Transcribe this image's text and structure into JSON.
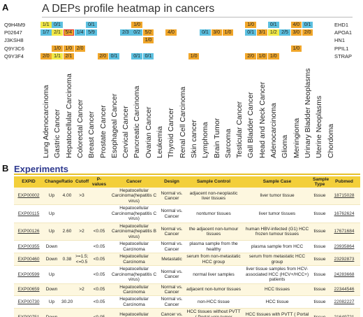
{
  "panel_a": "A",
  "panel_b": "B",
  "heatmap": {
    "title": "A DEPs profile heatmap in cancers",
    "columns": [
      "Lung Adenocarcinoma",
      "Gastric Cancer",
      "Hepatocellular Carcinoma",
      "Colorectal Cancer",
      "Breast Cancer",
      "Prostate Cancer",
      "Esophageal Cancer",
      "Cervical Cancer",
      "Pancreatic Carcinoma",
      "Ovarian Cancer",
      "Leukemia",
      "Thyroid Cancer",
      "Renal Cell Carcinoma",
      "Skin cancer",
      "Lymphoma",
      "Brain Tumor",
      "Sarcoma",
      "Testicular Cancer",
      "Gall Bladder Cancer",
      "Head and Neck Cancer",
      "Adenocarcinoma",
      "Glioma",
      "Meningioma",
      "Urinary Bladder Neoplasms",
      "Uterine Neoplasms",
      "Chordoma"
    ],
    "rows": [
      {
        "left": "Q9H4M9",
        "right": "EHD1",
        "cells": [
          {
            "col": 0,
            "text": "1/1",
            "color": "yellow"
          },
          {
            "col": 1,
            "text": "0/1",
            "color": "blue"
          },
          {
            "col": 4,
            "text": "0/1",
            "color": "blue"
          },
          {
            "col": 8,
            "text": "1/0",
            "color": "orange"
          },
          {
            "col": 18,
            "text": "1/0",
            "color": "orange"
          },
          {
            "col": 20,
            "text": "0/1",
            "color": "blue"
          },
          {
            "col": 22,
            "text": "4/0",
            "color": "orange"
          },
          {
            "col": 23,
            "text": "0/1",
            "color": "blue"
          }
        ]
      },
      {
        "left": "P02647",
        "right": "APOA1",
        "cells": [
          {
            "col": 0,
            "text": "1/7",
            "color": "blue"
          },
          {
            "col": 1,
            "text": "2/1",
            "color": "yellow"
          },
          {
            "col": 2,
            "text": "5/4",
            "color": "orange",
            "highlight": true
          },
          {
            "col": 3,
            "text": "1/4",
            "color": "blue"
          },
          {
            "col": 4,
            "text": "5/9",
            "color": "blue"
          },
          {
            "col": 7,
            "text": "2/3",
            "color": "blue"
          },
          {
            "col": 8,
            "text": "0/2",
            "color": "blue"
          },
          {
            "col": 9,
            "text": "5/2",
            "color": "orange"
          },
          {
            "col": 11,
            "text": "4/0",
            "color": "orange"
          },
          {
            "col": 14,
            "text": "0/1",
            "color": "blue"
          },
          {
            "col": 15,
            "text": "3/0",
            "color": "orange"
          },
          {
            "col": 16,
            "text": "1/0",
            "color": "orange"
          },
          {
            "col": 18,
            "text": "0/1",
            "color": "blue"
          },
          {
            "col": 19,
            "text": "3/1",
            "color": "orange"
          },
          {
            "col": 20,
            "text": "1/2",
            "color": "yellow"
          },
          {
            "col": 21,
            "text": "2/5",
            "color": "blue"
          },
          {
            "col": 22,
            "text": "3/0",
            "color": "orange"
          },
          {
            "col": 23,
            "text": "2/0",
            "color": "orange"
          }
        ]
      },
      {
        "left": "J3KSH8",
        "right": "HN1",
        "cells": [
          {
            "col": 9,
            "text": "1/0",
            "color": "orange"
          }
        ]
      },
      {
        "left": "Q9Y3C6",
        "right": "PPIL1",
        "cells": [
          {
            "col": 1,
            "text": "1/0",
            "color": "orange"
          },
          {
            "col": 2,
            "text": "1/0",
            "color": "orange"
          },
          {
            "col": 3,
            "text": "2/0",
            "color": "orange"
          },
          {
            "col": 22,
            "text": "1/0",
            "color": "orange"
          }
        ]
      },
      {
        "left": "Q9Y3F4",
        "right": "STRAP",
        "cells": [
          {
            "col": 0,
            "text": "2/0",
            "color": "orange"
          },
          {
            "col": 1,
            "text": "1/1",
            "color": "yellow"
          },
          {
            "col": 2,
            "text": "2/1",
            "color": "orange"
          },
          {
            "col": 5,
            "text": "2/0",
            "color": "orange"
          },
          {
            "col": 6,
            "text": "0/1",
            "color": "blue"
          },
          {
            "col": 8,
            "text": "0/1",
            "color": "blue"
          },
          {
            "col": 9,
            "text": "0/1",
            "color": "blue"
          },
          {
            "col": 13,
            "text": "1/0",
            "color": "orange"
          },
          {
            "col": 18,
            "text": "2/0",
            "color": "orange"
          },
          {
            "col": 19,
            "text": "1/0",
            "color": "orange"
          },
          {
            "col": 20,
            "text": "1/0",
            "color": "orange"
          }
        ]
      }
    ],
    "colors": {
      "yellow": "#f2ea47",
      "orange": "#f0a62a",
      "blue": "#5cc0e0",
      "highlight": "#e0332e"
    }
  },
  "experiments": {
    "title": "Experiments",
    "headers": [
      "EXPID",
      "Change",
      "Ratio",
      "Cutoff",
      "P-values",
      "Cancer",
      "Design",
      "Sample Control",
      "Sample Case",
      "Sample Type",
      "Pubmed"
    ],
    "rows": [
      [
        "EXP00002",
        "Up",
        "4.00",
        ">3",
        "",
        "Hepatocellular Carcinoma(hepatitis C virus)",
        "Normal vs. Cancer",
        "adjacent non-neoplastic liver tissues",
        "liver tumor tissue",
        "tissue",
        "18715028"
      ],
      [
        "EXP00115",
        "Up",
        "",
        "",
        "",
        "Hepatocellular Carcinoma(hepatitis C virus)",
        "Normal vs. Cancer",
        "nontumor tissues",
        "liver tumor tissues",
        "tissue",
        "16762624"
      ],
      [
        "EXP00126",
        "Up",
        "2.60",
        ">2",
        "<0.05",
        "Hepatocellular Carcinoma(hepatitis B virus)",
        "Normal vs. Cancer",
        "the adjacent non-tumour tissues",
        "human HBV-infected (G1) HCC frozen tumour tissues",
        "tissue",
        "17671684"
      ],
      [
        "EXP00355",
        "Down",
        "",
        "",
        "<0.05",
        "Hepatocellular Carcinoma",
        "Normal vs. Cancer",
        "plasma sample from the healthy",
        "plasma sample from HCC",
        "tissue",
        "23935864"
      ],
      [
        "EXP00460",
        "Down",
        "0.38",
        ">=1.5; <=0.5",
        "<0.05",
        "Hepatocellular Carcinoma",
        "Metastatic",
        "serum from non-metastatic HCC group",
        "serum from metastatic HCC group",
        "tissue",
        "23292873"
      ],
      [
        "EXP00599",
        "Up",
        "",
        "",
        "<0.05",
        "Hepatocellular Carcinoma(hepatitis C virus)",
        "Normal vs. Cancer",
        "normal liver samples",
        "liver tissue samples from HCV-associated HCC (HCV+/HCC+) patients",
        "tissue",
        "24283668"
      ],
      [
        "EXP00659",
        "Down",
        "",
        ">2",
        "<0.05",
        "Hepatocellular Carcinoma",
        "Normal vs. Cancer",
        "adjacent non-tumor tissues",
        "HCC tissues",
        "tissue",
        "22344546"
      ],
      [
        "EXP00730",
        "Up",
        "30.20",
        "",
        "<0.05",
        "Hepatocellular Carcinoma",
        "Normal vs. Cancer",
        "non-HCC tissue",
        "HCC tissue",
        "tissue",
        "22082227"
      ],
      [
        "EXP00751",
        "Down",
        "",
        "",
        "<0.05",
        "Hepatocellular Carcinoma",
        "Cancer vs. Cancer",
        "HCC tissues without PVTT ( Portal vein tumor thrombus )",
        "HCC tissues with PVTT ( Portal vein tumor thrombus )",
        "tissue",
        "21649721"
      ]
    ]
  }
}
